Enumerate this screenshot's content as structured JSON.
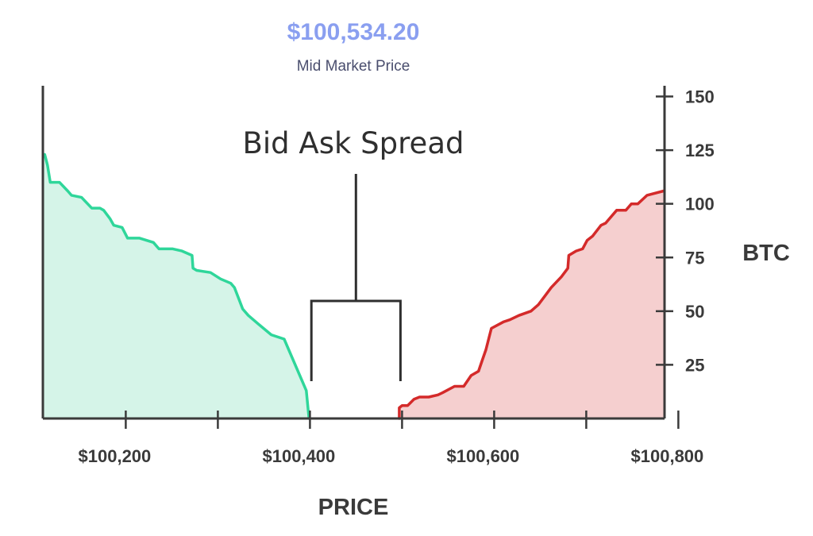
{
  "header": {
    "mid_price": "$100,534.20",
    "mid_label": "Mid Market Price"
  },
  "chart_data": {
    "type": "area",
    "title": "",
    "annotation": "Bid Ask Spread",
    "xlabel": "PRICE",
    "ylabel": "BTC",
    "xlim": [
      100110,
      100785
    ],
    "ylim": [
      0,
      155
    ],
    "x_ticks": [
      100200,
      100300,
      100400,
      100500,
      100600,
      100700,
      100800
    ],
    "x_tick_labels": [
      {
        "value": 100200,
        "label": "$100,200"
      },
      {
        "value": 100400,
        "label": "$100,400"
      },
      {
        "value": 100600,
        "label": "$100,600"
      },
      {
        "value": 100800,
        "label": "$100,800"
      }
    ],
    "y_ticks": [
      25,
      50,
      75,
      100,
      125,
      150
    ],
    "y_tick_labels": [
      "25",
      "50",
      "75",
      "100",
      "125",
      "150"
    ],
    "mid_price_value": 100534.2,
    "series": [
      {
        "side": "bid",
        "color": "#2fd69a",
        "fill": "#d5f4e8",
        "x": [
          100112,
          100115,
          100118,
          100128,
          100137,
          100141,
          100152,
          100163,
          100172,
          100176,
          100183,
          100187,
          100196,
          100202,
          100207,
          100215,
          100230,
          100236,
          100251,
          100261,
          100272,
          100273,
          100277,
          100292,
          100303,
          100314,
          100318,
          100327,
          100333,
          100344,
          100358,
          100372,
          100396,
          100399
        ],
        "y": [
          123,
          118,
          110,
          110,
          106,
          104,
          103,
          98,
          98,
          97,
          93,
          90,
          89,
          84,
          84,
          84,
          82,
          79,
          79,
          78,
          76,
          70,
          69,
          68,
          65,
          63,
          61,
          51,
          48,
          44,
          39,
          37,
          13,
          0
        ]
      },
      {
        "side": "ask",
        "color": "#d42a2a",
        "fill": "#f5cfcf",
        "x": [
          100497,
          100497,
          100500,
          100506,
          100513,
          100519,
          100529,
          100539,
          100544,
          100557,
          100567,
          100575,
          100583,
          100587,
          100591,
          100597,
          100610,
          100617,
          100627,
          100640,
          100648,
          100655,
          100662,
          100673,
          100680,
          100681,
          100689,
          100696,
          100701,
          100707,
          100716,
          100721,
          100725,
          100733,
          100743,
          100749,
          100756,
          100766,
          100784
        ],
        "y": [
          0,
          5,
          6,
          6,
          9,
          10,
          10,
          11,
          12,
          15,
          15,
          20,
          22,
          27,
          32,
          42,
          45,
          46,
          48,
          50,
          53,
          57,
          61,
          66,
          70,
          76,
          78,
          79,
          83,
          85,
          90,
          91,
          93,
          97,
          97,
          100,
          100,
          104,
          106
        ]
      }
    ]
  }
}
